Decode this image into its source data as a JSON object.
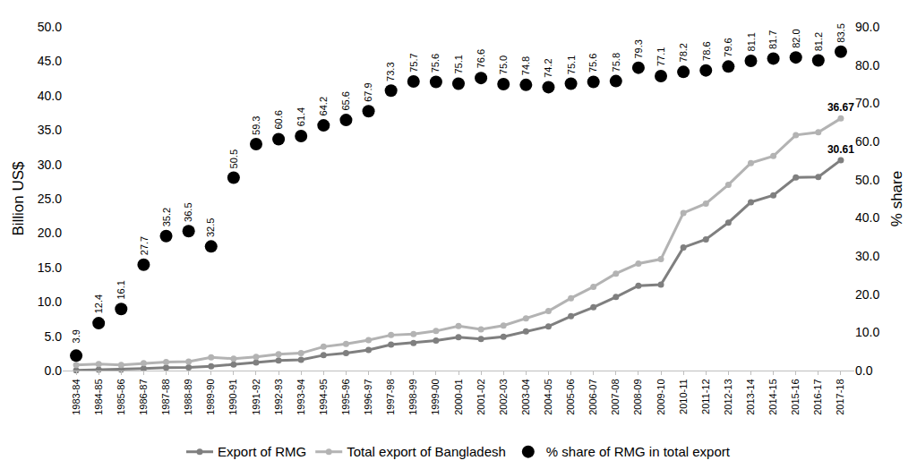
{
  "chart_data": {
    "type": "line",
    "categories": [
      "1983-84",
      "1984-85",
      "1985-86",
      "1986-87",
      "1987-88",
      "1988-89",
      "1989-90",
      "1990-91",
      "1991-92",
      "1992-93",
      "1993-94",
      "1994-95",
      "1995-96",
      "1996-97",
      "1997-98",
      "1998-99",
      "1999-00",
      "2000-01",
      "2001-02",
      "2002-03",
      "2003-04",
      "2004-05",
      "2005-06",
      "2006-07",
      "2007-08",
      "2008-09",
      "2009-10",
      "2010-11",
      "2011-12",
      "2012-13",
      "2013-14",
      "2014-15",
      "2015-16",
      "2016-17",
      "2017-18"
    ],
    "y_label": "Billion US$",
    "y2_label": "% share",
    "ylim": [
      0,
      50
    ],
    "yticks": [
      {
        "value": 0,
        "label": "0.0"
      },
      {
        "value": 5,
        "label": "5.0"
      },
      {
        "value": 10,
        "label": "10.0"
      },
      {
        "value": 15,
        "label": "15.0"
      },
      {
        "value": 20,
        "label": "20.0"
      },
      {
        "value": 25,
        "label": "25.0"
      },
      {
        "value": 30,
        "label": "30.0"
      },
      {
        "value": 35,
        "label": "35.0"
      },
      {
        "value": 40,
        "label": "40.0"
      },
      {
        "value": 45,
        "label": "45.0"
      },
      {
        "value": 50,
        "label": "50.0"
      }
    ],
    "y2lim": [
      0,
      90
    ],
    "y2ticks": [
      {
        "value": 0,
        "label": "0.0"
      },
      {
        "value": 10,
        "label": "10.0"
      },
      {
        "value": 20,
        "label": "20.0"
      },
      {
        "value": 30,
        "label": "30.0"
      },
      {
        "value": 40,
        "label": "40.0"
      },
      {
        "value": 50,
        "label": "50.0"
      },
      {
        "value": 60,
        "label": "60.0"
      },
      {
        "value": 70,
        "label": "70.0"
      },
      {
        "value": 80,
        "label": "80.0"
      },
      {
        "value": 90,
        "label": "90.0"
      }
    ],
    "grid": false,
    "legend": "bottom",
    "series": [
      {
        "name": "Export of RMG",
        "type": "line",
        "marker": "circle",
        "color": "#7f7f7f",
        "values": [
          0.03,
          0.12,
          0.13,
          0.3,
          0.43,
          0.47,
          0.62,
          0.87,
          1.18,
          1.45,
          1.56,
          2.23,
          2.55,
          3.0,
          3.78,
          4.02,
          4.35,
          4.86,
          4.58,
          4.91,
          5.69,
          6.42,
          7.9,
          9.21,
          10.7,
          12.35,
          12.5,
          17.91,
          19.09,
          21.52,
          24.49,
          25.49,
          28.09,
          28.15,
          30.61
        ],
        "value_labels": [
          null,
          null,
          null,
          null,
          null,
          null,
          null,
          null,
          null,
          null,
          null,
          null,
          null,
          null,
          null,
          null,
          null,
          null,
          null,
          null,
          null,
          null,
          null,
          null,
          null,
          null,
          null,
          null,
          null,
          null,
          null,
          null,
          null,
          null,
          "30.61"
        ]
      },
      {
        "name": "Total export of Bangladesh",
        "type": "line",
        "marker": "circle",
        "color": "#b3b3b3",
        "values": [
          0.81,
          0.93,
          0.82,
          1.07,
          1.23,
          1.29,
          1.92,
          1.72,
          1.99,
          2.38,
          2.53,
          3.47,
          3.88,
          4.42,
          5.16,
          5.31,
          5.75,
          6.47,
          5.99,
          6.55,
          7.6,
          8.65,
          10.53,
          12.18,
          14.11,
          15.57,
          16.2,
          22.93,
          24.29,
          27.03,
          30.19,
          31.21,
          34.26,
          34.66,
          36.67
        ],
        "value_labels": [
          null,
          null,
          null,
          null,
          null,
          null,
          null,
          null,
          null,
          null,
          null,
          null,
          null,
          null,
          null,
          null,
          null,
          null,
          null,
          null,
          null,
          null,
          null,
          null,
          null,
          null,
          null,
          null,
          null,
          null,
          null,
          null,
          null,
          null,
          "36.67"
        ]
      },
      {
        "name": "% share of RMG in total export",
        "type": "scatter",
        "marker": "circle",
        "color": "#000000",
        "axis": "y2",
        "data_labels": true,
        "values": [
          3.9,
          12.4,
          16.1,
          27.7,
          35.2,
          36.5,
          32.5,
          50.5,
          59.3,
          60.6,
          61.4,
          64.2,
          65.6,
          67.9,
          73.3,
          75.7,
          75.6,
          75.1,
          76.6,
          75.0,
          74.8,
          74.2,
          75.1,
          75.6,
          75.8,
          79.3,
          77.1,
          78.2,
          78.6,
          79.6,
          81.1,
          81.7,
          82.0,
          81.2,
          83.5
        ],
        "value_labels": [
          "3.9",
          "12.4",
          "16.1",
          "27.7",
          "35.2",
          "36.5",
          "32.5",
          "50.5",
          "59.3",
          "60.6",
          "61.4",
          "64.2",
          "65.6",
          "67.9",
          "73.3",
          "75.7",
          "75.6",
          "75.1",
          "76.6",
          "75.0",
          "74.8",
          "74.2",
          "75.1",
          "75.6",
          "75.8",
          "79.3",
          "77.1",
          "78.2",
          "78.6",
          "79.6",
          "81.1",
          "81.7",
          "82.0",
          "81.2",
          "83.5"
        ]
      }
    ]
  }
}
